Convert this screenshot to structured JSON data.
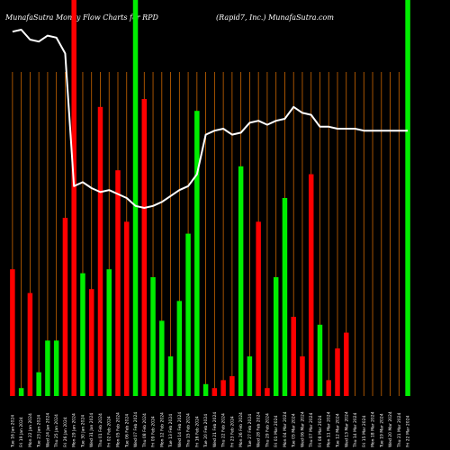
{
  "chart_data": {
    "type": "bar",
    "title_left": "MunafaSutra  Money Flow  Charts for RPD",
    "title_right": "(Rapid7,  Inc.) MunafaSutra.com",
    "xlabel": "",
    "ylabel": "",
    "grid": "vertical",
    "categories": [
      "Tue 16 Jan",
      "Fri 19 Jan",
      "Mon 22 Jan",
      "Tue 23 Jan",
      "Wed 24 Jan",
      "Thu 25 Jan",
      "Fri 26 Jan",
      "Mon 29 Jan",
      "Tue 30 Jan",
      "Wed 31 Jan",
      "Thu 01 Feb",
      "Fri 02 Feb",
      "Mon 05 Feb",
      "Tue 06 Feb",
      "Wed 07 Feb",
      "Thu 08 Feb",
      "Fri 09 Feb",
      "Mon 12 Feb",
      "Tue 13 Feb",
      "Wed 14 Feb",
      "Thu 15 Feb",
      "Fri 16 Feb",
      "Tue 20 Feb",
      "Wed 21 Feb",
      "Thu 22 Feb",
      "Fri 23 Feb",
      "Mon 26 Feb",
      "Tue 27 Feb",
      "Wed 28 Feb",
      "Thu 29 Feb",
      "Fri 01 Mar",
      "Mon 04 Mar",
      "Tue 05 Mar",
      "Wed 06 Mar",
      "Thu 07 Mar",
      "Fri 08 Mar",
      "Mon 11 Mar",
      "Tue 12 Mar",
      "Wed 13 Mar",
      "Thu 14 Mar",
      "Fri 15 Mar",
      "Mon 18 Mar",
      "Tue 19 Mar",
      "Wed 20 Mar",
      "Thu 21 Mar",
      "Fri 22 Mar"
    ],
    "tick_labels": [
      "Tue 16 Jan 2024",
      "Fri 19 Jan 2024",
      "Mon 22 Jan 2024",
      "Tue 23 Jan 2024",
      "Wed 24 Jan 2024",
      "Thu 25 Jan 2024",
      "Fri 26 Jan 2024",
      "Mon 29 Jan 2024",
      "Tue 30 Jan 2024",
      "Wed 31 Jan 2024",
      "Thu 01 Feb 2024",
      "Fri 02 Feb 2024",
      "Mon 05 Feb 2024",
      "Tue 06 Feb 2024",
      "Wed 07 Feb 2024",
      "Thu 08 Feb 2024",
      "Fri 09 Feb 2024",
      "Mon 12 Feb 2024",
      "Tue 13 Feb 2024",
      "Wed 14 Feb 2024",
      "Thu 15 Feb 2024",
      "Fri 16 Feb 2024",
      "Tue 20 Feb 2024",
      "Wed 21 Feb 2024",
      "Thu 22 Feb 2024",
      "Fri 23 Feb 2024",
      "Mon 26 Feb 2024",
      "Tue 27 Feb 2024",
      "Wed 28 Feb 2024",
      "Thu 29 Feb 2024",
      "Fri 01 Mar 2024",
      "Mon 04 Mar 2024",
      "Tue 05 Mar 2024",
      "Wed 06 Mar 2024",
      "Thu 07 Mar 2024",
      "Fri 08 Mar 2024",
      "Mon 11 Mar 2024",
      "Tue 12 Mar 2024",
      "Wed 13 Mar 2024",
      "Thu 14 Mar 2024",
      "Fri 15 Mar 2024",
      "Mon 18 Mar 2024",
      "Tue 19 Mar 2024",
      "Wed 20 Mar 2024",
      "Thu 21 Mar 2024",
      "Fri 22 Mar 2024"
    ],
    "bars": {
      "values": [
        32,
        2,
        26,
        6,
        14,
        14,
        45,
        100,
        31,
        27,
        73,
        32,
        57,
        44,
        100,
        75,
        30,
        19,
        10,
        24,
        41,
        72,
        3,
        2,
        4,
        5,
        58,
        10,
        44,
        2,
        30,
        50,
        20,
        10,
        56,
        18,
        4,
        12,
        16,
        0,
        0,
        0,
        0,
        0,
        0,
        100
      ],
      "colors": [
        "red",
        "green",
        "red",
        "green",
        "green",
        "green",
        "red",
        "red",
        "green",
        "red",
        "red",
        "green",
        "red",
        "red",
        "green",
        "red",
        "green",
        "green",
        "green",
        "green",
        "green",
        "green",
        "green",
        "red",
        "red",
        "red",
        "green",
        "green",
        "red",
        "red",
        "green",
        "green",
        "red",
        "red",
        "red",
        "green",
        "red",
        "red",
        "red",
        "green",
        "green",
        "green",
        "green",
        "green",
        "green",
        "green"
      ]
    },
    "line": {
      "name": "",
      "values": [
        92,
        92.5,
        90,
        89.5,
        91,
        90.5,
        86.5,
        53,
        54,
        52.5,
        51.5,
        52,
        51,
        50,
        48,
        47.5,
        48,
        49,
        50.5,
        52,
        53,
        56,
        66,
        67,
        67.5,
        66,
        66.5,
        69,
        69.5,
        68.5,
        69.5,
        70,
        73,
        71.5,
        71,
        68,
        68,
        67.5,
        67.5,
        67.5,
        67,
        67,
        67,
        67,
        67,
        67
      ]
    },
    "ylim": [
      0,
      100
    ],
    "colors": {
      "background": "#000000",
      "green": "#00ee00",
      "red": "#ff0000",
      "line": "#ffffff",
      "grid": "#cc6600"
    }
  }
}
